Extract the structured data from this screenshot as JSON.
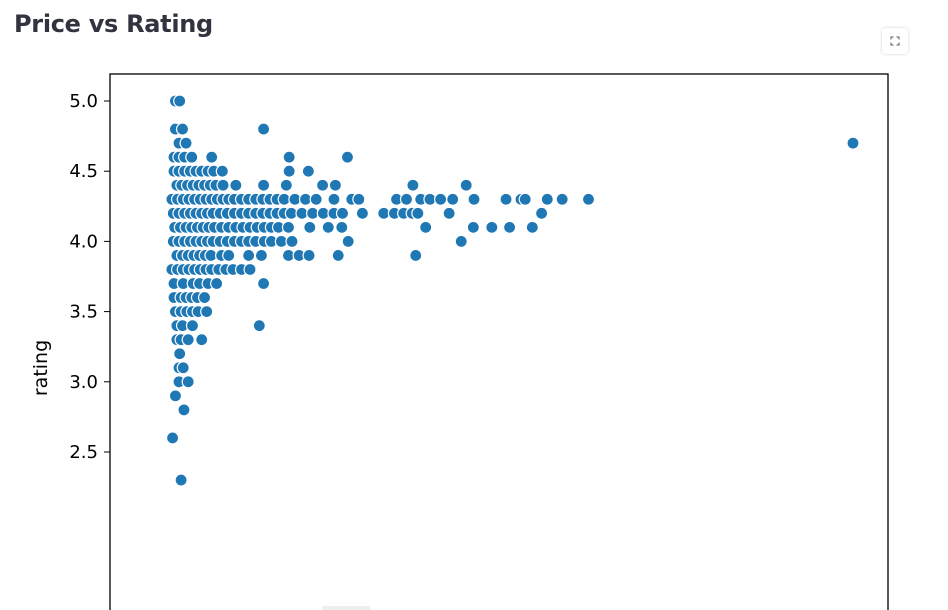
{
  "header": {
    "title": "Price vs Rating"
  },
  "toolbar": {
    "fullscreen_icon": "fullscreen-expand-icon"
  },
  "chart_data": {
    "type": "scatter",
    "title": "Price vs Rating",
    "xlabel": "",
    "ylabel": "rating",
    "ylim": [
      2.15,
      5.15
    ],
    "xlim": [
      0,
      1
    ],
    "yticks": [
      "2.5",
      "3.0",
      "3.5",
      "4.0",
      "4.5",
      "5.0"
    ],
    "ytick_values": [
      2.5,
      3.0,
      3.5,
      4.0,
      4.5,
      5.0
    ],
    "grid": false,
    "marker_color": "#1f77b4",
    "marker_edge": "#ffffff",
    "series": [
      {
        "values": [
          {
            "x": 0.047,
            "y": 5.0
          },
          {
            "x": 0.053,
            "y": 5.0
          },
          {
            "x": 0.047,
            "y": 4.8
          },
          {
            "x": 0.057,
            "y": 4.8
          },
          {
            "x": 0.171,
            "y": 4.8
          },
          {
            "x": 0.052,
            "y": 4.7
          },
          {
            "x": 0.062,
            "y": 4.7
          },
          {
            "x": 1.0,
            "y": 4.7
          },
          {
            "x": 0.045,
            "y": 4.6
          },
          {
            "x": 0.052,
            "y": 4.6
          },
          {
            "x": 0.06,
            "y": 4.6
          },
          {
            "x": 0.07,
            "y": 4.6
          },
          {
            "x": 0.098,
            "y": 4.6
          },
          {
            "x": 0.207,
            "y": 4.6
          },
          {
            "x": 0.289,
            "y": 4.6
          },
          {
            "x": 0.045,
            "y": 4.5
          },
          {
            "x": 0.052,
            "y": 4.5
          },
          {
            "x": 0.06,
            "y": 4.5
          },
          {
            "x": 0.068,
            "y": 4.5
          },
          {
            "x": 0.076,
            "y": 4.5
          },
          {
            "x": 0.084,
            "y": 4.5
          },
          {
            "x": 0.093,
            "y": 4.5
          },
          {
            "x": 0.101,
            "y": 4.5
          },
          {
            "x": 0.113,
            "y": 4.5
          },
          {
            "x": 0.207,
            "y": 4.5
          },
          {
            "x": 0.234,
            "y": 4.5
          },
          {
            "x": 0.049,
            "y": 4.4
          },
          {
            "x": 0.056,
            "y": 4.4
          },
          {
            "x": 0.064,
            "y": 4.4
          },
          {
            "x": 0.072,
            "y": 4.4
          },
          {
            "x": 0.08,
            "y": 4.4
          },
          {
            "x": 0.088,
            "y": 4.4
          },
          {
            "x": 0.096,
            "y": 4.4
          },
          {
            "x": 0.104,
            "y": 4.4
          },
          {
            "x": 0.114,
            "y": 4.4
          },
          {
            "x": 0.132,
            "y": 4.4
          },
          {
            "x": 0.171,
            "y": 4.4
          },
          {
            "x": 0.203,
            "y": 4.4
          },
          {
            "x": 0.254,
            "y": 4.4
          },
          {
            "x": 0.272,
            "y": 4.4
          },
          {
            "x": 0.381,
            "y": 4.4
          },
          {
            "x": 0.456,
            "y": 4.4
          },
          {
            "x": 0.042,
            "y": 4.3
          },
          {
            "x": 0.05,
            "y": 4.3
          },
          {
            "x": 0.058,
            "y": 4.3
          },
          {
            "x": 0.066,
            "y": 4.3
          },
          {
            "x": 0.074,
            "y": 4.3
          },
          {
            "x": 0.082,
            "y": 4.3
          },
          {
            "x": 0.09,
            "y": 4.3
          },
          {
            "x": 0.098,
            "y": 4.3
          },
          {
            "x": 0.106,
            "y": 4.3
          },
          {
            "x": 0.114,
            "y": 4.3
          },
          {
            "x": 0.122,
            "y": 4.3
          },
          {
            "x": 0.13,
            "y": 4.3
          },
          {
            "x": 0.14,
            "y": 4.3
          },
          {
            "x": 0.15,
            "y": 4.3
          },
          {
            "x": 0.16,
            "y": 4.3
          },
          {
            "x": 0.17,
            "y": 4.3
          },
          {
            "x": 0.18,
            "y": 4.3
          },
          {
            "x": 0.19,
            "y": 4.3
          },
          {
            "x": 0.2,
            "y": 4.3
          },
          {
            "x": 0.215,
            "y": 4.3
          },
          {
            "x": 0.23,
            "y": 4.3
          },
          {
            "x": 0.245,
            "y": 4.3
          },
          {
            "x": 0.27,
            "y": 4.3
          },
          {
            "x": 0.295,
            "y": 4.3
          },
          {
            "x": 0.305,
            "y": 4.3
          },
          {
            "x": 0.358,
            "y": 4.3
          },
          {
            "x": 0.372,
            "y": 4.3
          },
          {
            "x": 0.392,
            "y": 4.3
          },
          {
            "x": 0.405,
            "y": 4.3
          },
          {
            "x": 0.42,
            "y": 4.3
          },
          {
            "x": 0.437,
            "y": 4.3
          },
          {
            "x": 0.467,
            "y": 4.3
          },
          {
            "x": 0.512,
            "y": 4.3
          },
          {
            "x": 0.533,
            "y": 4.3
          },
          {
            "x": 0.539,
            "y": 4.3
          },
          {
            "x": 0.57,
            "y": 4.3
          },
          {
            "x": 0.591,
            "y": 4.3
          },
          {
            "x": 0.628,
            "y": 4.3
          },
          {
            "x": 0.044,
            "y": 4.2
          },
          {
            "x": 0.052,
            "y": 4.2
          },
          {
            "x": 0.06,
            "y": 4.2
          },
          {
            "x": 0.068,
            "y": 4.2
          },
          {
            "x": 0.076,
            "y": 4.2
          },
          {
            "x": 0.084,
            "y": 4.2
          },
          {
            "x": 0.092,
            "y": 4.2
          },
          {
            "x": 0.1,
            "y": 4.2
          },
          {
            "x": 0.11,
            "y": 4.2
          },
          {
            "x": 0.12,
            "y": 4.2
          },
          {
            "x": 0.13,
            "y": 4.2
          },
          {
            "x": 0.14,
            "y": 4.2
          },
          {
            "x": 0.15,
            "y": 4.2
          },
          {
            "x": 0.16,
            "y": 4.2
          },
          {
            "x": 0.17,
            "y": 4.2
          },
          {
            "x": 0.18,
            "y": 4.2
          },
          {
            "x": 0.19,
            "y": 4.2
          },
          {
            "x": 0.2,
            "y": 4.2
          },
          {
            "x": 0.21,
            "y": 4.2
          },
          {
            "x": 0.225,
            "y": 4.2
          },
          {
            "x": 0.24,
            "y": 4.2
          },
          {
            "x": 0.255,
            "y": 4.2
          },
          {
            "x": 0.27,
            "y": 4.2
          },
          {
            "x": 0.282,
            "y": 4.2
          },
          {
            "x": 0.31,
            "y": 4.2
          },
          {
            "x": 0.34,
            "y": 4.2
          },
          {
            "x": 0.355,
            "y": 4.2
          },
          {
            "x": 0.368,
            "y": 4.2
          },
          {
            "x": 0.38,
            "y": 4.2
          },
          {
            "x": 0.388,
            "y": 4.2
          },
          {
            "x": 0.432,
            "y": 4.2
          },
          {
            "x": 0.562,
            "y": 4.2
          },
          {
            "x": 0.046,
            "y": 4.1
          },
          {
            "x": 0.054,
            "y": 4.1
          },
          {
            "x": 0.062,
            "y": 4.1
          },
          {
            "x": 0.07,
            "y": 4.1
          },
          {
            "x": 0.078,
            "y": 4.1
          },
          {
            "x": 0.086,
            "y": 4.1
          },
          {
            "x": 0.094,
            "y": 4.1
          },
          {
            "x": 0.102,
            "y": 4.1
          },
          {
            "x": 0.112,
            "y": 4.1
          },
          {
            "x": 0.122,
            "y": 4.1
          },
          {
            "x": 0.132,
            "y": 4.1
          },
          {
            "x": 0.142,
            "y": 4.1
          },
          {
            "x": 0.152,
            "y": 4.1
          },
          {
            "x": 0.162,
            "y": 4.1
          },
          {
            "x": 0.172,
            "y": 4.1
          },
          {
            "x": 0.182,
            "y": 4.1
          },
          {
            "x": 0.192,
            "y": 4.1
          },
          {
            "x": 0.206,
            "y": 4.1
          },
          {
            "x": 0.236,
            "y": 4.1
          },
          {
            "x": 0.262,
            "y": 4.1
          },
          {
            "x": 0.281,
            "y": 4.1
          },
          {
            "x": 0.399,
            "y": 4.1
          },
          {
            "x": 0.466,
            "y": 4.1
          },
          {
            "x": 0.492,
            "y": 4.1
          },
          {
            "x": 0.517,
            "y": 4.1
          },
          {
            "x": 0.549,
            "y": 4.1
          },
          {
            "x": 0.044,
            "y": 4.0
          },
          {
            "x": 0.052,
            "y": 4.0
          },
          {
            "x": 0.06,
            "y": 4.0
          },
          {
            "x": 0.068,
            "y": 4.0
          },
          {
            "x": 0.076,
            "y": 4.0
          },
          {
            "x": 0.084,
            "y": 4.0
          },
          {
            "x": 0.092,
            "y": 4.0
          },
          {
            "x": 0.1,
            "y": 4.0
          },
          {
            "x": 0.11,
            "y": 4.0
          },
          {
            "x": 0.12,
            "y": 4.0
          },
          {
            "x": 0.13,
            "y": 4.0
          },
          {
            "x": 0.14,
            "y": 4.0
          },
          {
            "x": 0.15,
            "y": 4.0
          },
          {
            "x": 0.16,
            "y": 4.0
          },
          {
            "x": 0.172,
            "y": 4.0
          },
          {
            "x": 0.182,
            "y": 4.0
          },
          {
            "x": 0.196,
            "y": 4.0
          },
          {
            "x": 0.211,
            "y": 4.0
          },
          {
            "x": 0.29,
            "y": 4.0
          },
          {
            "x": 0.449,
            "y": 4.0
          },
          {
            "x": 0.049,
            "y": 3.9
          },
          {
            "x": 0.057,
            "y": 3.9
          },
          {
            "x": 0.065,
            "y": 3.9
          },
          {
            "x": 0.073,
            "y": 3.9
          },
          {
            "x": 0.081,
            "y": 3.9
          },
          {
            "x": 0.089,
            "y": 3.9
          },
          {
            "x": 0.097,
            "y": 3.9
          },
          {
            "x": 0.112,
            "y": 3.9
          },
          {
            "x": 0.122,
            "y": 3.9
          },
          {
            "x": 0.15,
            "y": 3.9
          },
          {
            "x": 0.168,
            "y": 3.9
          },
          {
            "x": 0.206,
            "y": 3.9
          },
          {
            "x": 0.221,
            "y": 3.9
          },
          {
            "x": 0.235,
            "y": 3.9
          },
          {
            "x": 0.276,
            "y": 3.9
          },
          {
            "x": 0.385,
            "y": 3.9
          },
          {
            "x": 0.042,
            "y": 3.8
          },
          {
            "x": 0.05,
            "y": 3.8
          },
          {
            "x": 0.058,
            "y": 3.8
          },
          {
            "x": 0.066,
            "y": 3.8
          },
          {
            "x": 0.074,
            "y": 3.8
          },
          {
            "x": 0.082,
            "y": 3.8
          },
          {
            "x": 0.09,
            "y": 3.8
          },
          {
            "x": 0.098,
            "y": 3.8
          },
          {
            "x": 0.108,
            "y": 3.8
          },
          {
            "x": 0.118,
            "y": 3.8
          },
          {
            "x": 0.128,
            "y": 3.8
          },
          {
            "x": 0.14,
            "y": 3.8
          },
          {
            "x": 0.152,
            "y": 3.8
          },
          {
            "x": 0.045,
            "y": 3.7
          },
          {
            "x": 0.058,
            "y": 3.7
          },
          {
            "x": 0.072,
            "y": 3.7
          },
          {
            "x": 0.081,
            "y": 3.7
          },
          {
            "x": 0.093,
            "y": 3.7
          },
          {
            "x": 0.105,
            "y": 3.7
          },
          {
            "x": 0.171,
            "y": 3.7
          },
          {
            "x": 0.045,
            "y": 3.6
          },
          {
            "x": 0.055,
            "y": 3.6
          },
          {
            "x": 0.062,
            "y": 3.6
          },
          {
            "x": 0.07,
            "y": 3.6
          },
          {
            "x": 0.078,
            "y": 3.6
          },
          {
            "x": 0.088,
            "y": 3.6
          },
          {
            "x": 0.047,
            "y": 3.5
          },
          {
            "x": 0.055,
            "y": 3.5
          },
          {
            "x": 0.063,
            "y": 3.5
          },
          {
            "x": 0.071,
            "y": 3.5
          },
          {
            "x": 0.079,
            "y": 3.5
          },
          {
            "x": 0.091,
            "y": 3.5
          },
          {
            "x": 0.049,
            "y": 3.4
          },
          {
            "x": 0.057,
            "y": 3.4
          },
          {
            "x": 0.071,
            "y": 3.4
          },
          {
            "x": 0.165,
            "y": 3.4
          },
          {
            "x": 0.049,
            "y": 3.3
          },
          {
            "x": 0.055,
            "y": 3.3
          },
          {
            "x": 0.065,
            "y": 3.3
          },
          {
            "x": 0.084,
            "y": 3.3
          },
          {
            "x": 0.053,
            "y": 3.2
          },
          {
            "x": 0.052,
            "y": 3.1
          },
          {
            "x": 0.058,
            "y": 3.1
          },
          {
            "x": 0.052,
            "y": 3.0
          },
          {
            "x": 0.065,
            "y": 3.0
          },
          {
            "x": 0.047,
            "y": 2.9
          },
          {
            "x": 0.059,
            "y": 2.8
          },
          {
            "x": 0.043,
            "y": 2.6
          },
          {
            "x": 0.055,
            "y": 2.3
          }
        ]
      }
    ]
  }
}
